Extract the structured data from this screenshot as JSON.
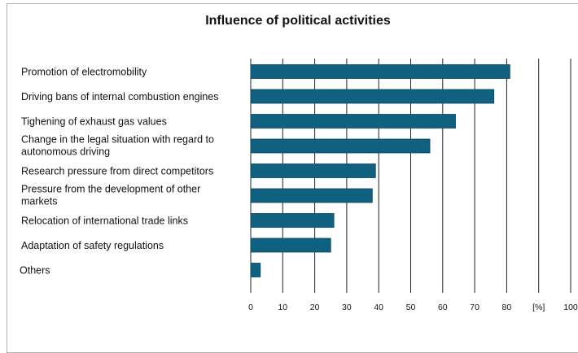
{
  "chart_data": {
    "type": "bar",
    "orientation": "horizontal",
    "title": "Influence of political activities",
    "unit_label": "[%]",
    "categories": [
      [
        "Promotion of electromobility"
      ],
      [
        "Driving bans of internal combustion engines"
      ],
      [
        "Tighening of exhaust gas values"
      ],
      [
        "Change in the legal situation with regard to",
        "autonomous driving"
      ],
      [
        "Research pressure from direct competitors"
      ],
      [
        "Pressure from the development of other",
        "markets"
      ],
      [
        "Relocation of international trade links"
      ],
      [
        "Adaptation of safety regulations"
      ],
      [
        "Others"
      ]
    ],
    "values": [
      81,
      76,
      64,
      56,
      39,
      38,
      26,
      25,
      3
    ],
    "xlim": [
      0,
      100
    ],
    "x_ticks": [
      "0",
      "10",
      "20",
      "30",
      "40",
      "50",
      "60",
      "70",
      "80",
      "[%]",
      "100"
    ],
    "grid": "vertical",
    "bar_color": "#106080"
  }
}
